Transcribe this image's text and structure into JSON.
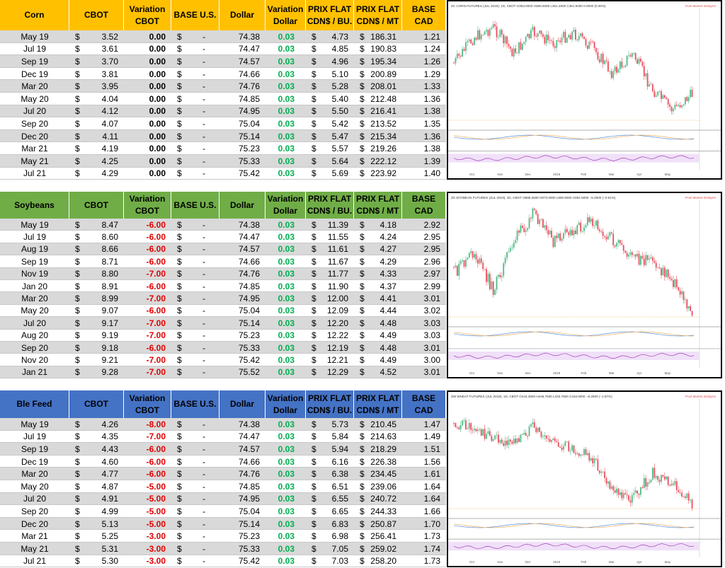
{
  "currency_symbol": "$",
  "sections": [
    {
      "header": [
        [
          "Corn"
        ],
        [
          "CBOT"
        ],
        [
          "Variation",
          "CBOT"
        ],
        [
          "BASE U.S."
        ],
        [
          "Dollar"
        ],
        [
          "Variation",
          "Dollar"
        ],
        [
          "PRIX FLAT",
          "CDN$ / BU."
        ],
        [
          "PRIX FLAT",
          "CDN$ / MT"
        ],
        [
          "BASE CAD"
        ]
      ],
      "rows": [
        [
          "May 19",
          "3.52",
          "0.00",
          "-",
          "74.38",
          "0.03",
          "4.73",
          "186.31",
          "1.21"
        ],
        [
          "Jul 19",
          "3.61",
          "0.00",
          "-",
          "74.47",
          "0.03",
          "4.85",
          "190.83",
          "1.24"
        ],
        [
          "Sep 19",
          "3.70",
          "0.00",
          "-",
          "74.57",
          "0.03",
          "4.96",
          "195.34",
          "1.26"
        ],
        [
          "Dec 19",
          "3.81",
          "0.00",
          "-",
          "74.66",
          "0.03",
          "5.10",
          "200.89",
          "1.29"
        ],
        [
          "Mar 20",
          "3.95",
          "0.00",
          "-",
          "74.76",
          "0.03",
          "5.28",
          "208.01",
          "1.33"
        ],
        [
          "May 20",
          "4.04",
          "0.00",
          "-",
          "74.85",
          "0.03",
          "5.40",
          "212.48",
          "1.36"
        ],
        [
          "Jul 20",
          "4.12",
          "0.00",
          "-",
          "74.95",
          "0.03",
          "5.50",
          "216.41",
          "1.38"
        ],
        [
          "Sep 20",
          "4.07",
          "0.00",
          "-",
          "75.04",
          "0.03",
          "5.42",
          "213.52",
          "1.35"
        ],
        [
          "Dec 20",
          "4.11",
          "0.00",
          "-",
          "75.14",
          "0.03",
          "5.47",
          "215.34",
          "1.36"
        ],
        [
          "Mar 21",
          "4.19",
          "0.00",
          "-",
          "75.23",
          "0.03",
          "5.57",
          "219.26",
          "1.38"
        ],
        [
          "May 21",
          "4.25",
          "0.00",
          "-",
          "75.33",
          "0.03",
          "5.64",
          "222.12",
          "1.39"
        ],
        [
          "Jul 21",
          "4.29",
          "0.00",
          "-",
          "75.42",
          "0.03",
          "5.69",
          "223.92",
          "1.40"
        ]
      ],
      "chart": {
        "title": "ZC CORN FUTURES (JUL 2019), 1D, CBOT  O363.0000 H366.0000 L361.2500 C361.5000 0.0000 (0.00%)",
        "status": "Post Market Delayed",
        "x_labels": [
          "Oct",
          "Nov",
          "Dec",
          "2019",
          "Feb",
          "Mar",
          "Apr",
          "May"
        ]
      }
    },
    {
      "header": [
        [
          "Soybeans"
        ],
        [
          "CBOT"
        ],
        [
          "Variation",
          "CBOT"
        ],
        [
          "BASE U.S."
        ],
        [
          "Dollar"
        ],
        [
          "Variation",
          "Dollar"
        ],
        [
          "PRIX FLAT",
          "CDN$ / BU."
        ],
        [
          "PRIX FLAT",
          "CDN$ / MT"
        ],
        [
          "BASE CAD"
        ]
      ],
      "rows": [
        [
          "May 19",
          "8.47",
          "-6.00",
          "-",
          "74.38",
          "0.03",
          "11.39",
          "4.18",
          "2.92"
        ],
        [
          "Jul 19",
          "8.60",
          "-6.00",
          "-",
          "74.47",
          "0.03",
          "11.55",
          "4.24",
          "2.95"
        ],
        [
          "Aug 19",
          "8.66",
          "-6.00",
          "-",
          "74.57",
          "0.03",
          "11.61",
          "4.27",
          "2.95"
        ],
        [
          "Sep 19",
          "8.71",
          "-6.00",
          "-",
          "74.66",
          "0.03",
          "11.67",
          "4.29",
          "2.96"
        ],
        [
          "Nov 19",
          "8.80",
          "-7.00",
          "-",
          "74.76",
          "0.03",
          "11.77",
          "4.33",
          "2.97"
        ],
        [
          "Jan 20",
          "8.91",
          "-6.00",
          "-",
          "74.85",
          "0.03",
          "11.90",
          "4.37",
          "2.99"
        ],
        [
          "Mar 20",
          "8.99",
          "-7.00",
          "-",
          "74.95",
          "0.03",
          "12.00",
          "4.41",
          "3.01"
        ],
        [
          "May 20",
          "9.07",
          "-6.00",
          "-",
          "75.04",
          "0.03",
          "12.09",
          "4.44",
          "3.02"
        ],
        [
          "Jul 20",
          "9.17",
          "-7.00",
          "-",
          "75.14",
          "0.03",
          "12.20",
          "4.48",
          "3.03"
        ],
        [
          "Aug 20",
          "9.19",
          "-7.00",
          "-",
          "75.23",
          "0.03",
          "12.22",
          "4.49",
          "3.03"
        ],
        [
          "Sep 20",
          "9.18",
          "-6.00",
          "-",
          "75.33",
          "0.03",
          "12.19",
          "4.48",
          "3.01"
        ],
        [
          "Nov 20",
          "9.21",
          "-7.00",
          "-",
          "75.42",
          "0.03",
          "12.21",
          "4.49",
          "3.00"
        ],
        [
          "Jan 21",
          "9.28",
          "-7.00",
          "-",
          "75.52",
          "0.03",
          "12.29",
          "4.52",
          "3.01"
        ]
      ],
      "chart": {
        "title": "ZS SOYBEAN FUTURES (JUL 2019), 1D, CBOT  O868.2500 H873.0000 L860.5000 C861.5000 −5.2500 (−0.61%)",
        "status": "Post Market Delayed",
        "x_labels": [
          "Oct",
          "Nov",
          "Dec",
          "2019",
          "Feb",
          "Mar",
          "Apr",
          "May"
        ]
      }
    },
    {
      "header": [
        [
          "Ble Feed"
        ],
        [
          "CBOT"
        ],
        [
          "Variation",
          "CBOT"
        ],
        [
          "BASE U.S."
        ],
        [
          "Dollar"
        ],
        [
          "Variation",
          "Dollar"
        ],
        [
          "PRIX FLAT",
          "CDN$ / BU."
        ],
        [
          "PRIX FLAT",
          "CDN$ / MT"
        ],
        [
          "BASE CAD"
        ]
      ],
      "rows": [
        [
          "May 19",
          "4.26",
          "-8.00",
          "-",
          "74.38",
          "0.03",
          "5.73",
          "210.45",
          "1.47"
        ],
        [
          "Jul 19",
          "4.35",
          "-7.00",
          "-",
          "74.47",
          "0.03",
          "5.84",
          "214.63",
          "1.49"
        ],
        [
          "Sep 19",
          "4.43",
          "-6.00",
          "-",
          "74.57",
          "0.03",
          "5.94",
          "218.29",
          "1.51"
        ],
        [
          "Dec 19",
          "4.60",
          "-6.00",
          "-",
          "74.66",
          "0.03",
          "6.16",
          "226.38",
          "1.56"
        ],
        [
          "Mar 20",
          "4.77",
          "-6.00",
          "-",
          "74.76",
          "0.03",
          "6.38",
          "234.45",
          "1.61"
        ],
        [
          "May 20",
          "4.87",
          "-5.00",
          "-",
          "74.85",
          "0.03",
          "6.51",
          "239.06",
          "1.64"
        ],
        [
          "Jul 20",
          "4.91",
          "-5.00",
          "-",
          "74.95",
          "0.03",
          "6.55",
          "240.72",
          "1.64"
        ],
        [
          "Sep 20",
          "4.99",
          "-5.00",
          "-",
          "75.04",
          "0.03",
          "6.65",
          "244.33",
          "1.66"
        ],
        [
          "Dec 20",
          "5.13",
          "-5.00",
          "-",
          "75.14",
          "0.03",
          "6.83",
          "250.87",
          "1.70"
        ],
        [
          "Mar 21",
          "5.25",
          "-3.00",
          "-",
          "75.23",
          "0.03",
          "6.98",
          "256.41",
          "1.73"
        ],
        [
          "May 21",
          "5.31",
          "-3.00",
          "-",
          "75.33",
          "0.03",
          "7.05",
          "259.02",
          "1.74"
        ],
        [
          "Jul 21",
          "5.30",
          "-3.00",
          "-",
          "75.42",
          "0.03",
          "7.03",
          "258.20",
          "1.73"
        ]
      ],
      "chart": {
        "title": "ZW WHEAT FUTURES (JUL 2019), 1D, CBOT  O443.2500 H446.7500 L433.7500 C434.0000 −8.2500 (−1.87%)",
        "status": "Post Market Delayed",
        "x_labels": [
          "Oct",
          "Nov",
          "Dec",
          "2019",
          "Feb",
          "Mar",
          "Apr",
          "May"
        ]
      }
    }
  ]
}
